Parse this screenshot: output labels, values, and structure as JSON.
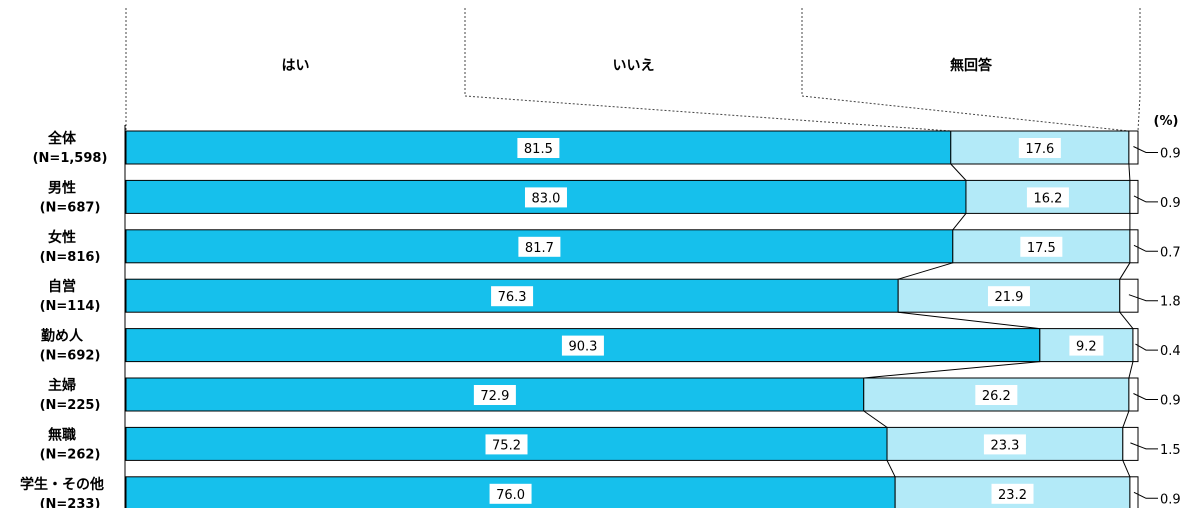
{
  "chart_data": {
    "type": "bar",
    "stacked": true,
    "percent_stacked": true,
    "unit": "(%)",
    "series": [
      {
        "name": "はい",
        "color": "#16c0ec",
        "values": [
          81.5,
          83.0,
          81.7,
          76.3,
          90.3,
          72.9,
          75.2,
          76.0
        ]
      },
      {
        "name": "いいえ",
        "color": "#b3eaf8",
        "values": [
          17.6,
          16.2,
          17.5,
          21.9,
          9.2,
          26.2,
          23.3,
          23.2
        ]
      },
      {
        "name": "無回答",
        "color": "#ffffff",
        "values": [
          0.9,
          0.9,
          0.7,
          1.8,
          0.4,
          0.9,
          1.5,
          0.9
        ]
      }
    ],
    "categories": [
      {
        "name": "全体",
        "n": "(N=1,598)"
      },
      {
        "name": "男性",
        "n": "(N=687)"
      },
      {
        "name": "女性",
        "n": "(N=816)"
      },
      {
        "name": "自営",
        "n": "(N=114)"
      },
      {
        "name": "勤め人",
        "n": "(N=692)"
      },
      {
        "name": "主婦",
        "n": "(N=225)"
      },
      {
        "name": "無職",
        "n": "(N=262)"
      },
      {
        "name": "学生・その他",
        "n": "(N=233)"
      }
    ],
    "labels": {
      "はい": [
        "81.5",
        "83.0",
        "81.7",
        "76.3",
        "90.3",
        "72.9",
        "75.2",
        "76.0"
      ],
      "いいえ": [
        "17.6",
        "16.2",
        "17.5",
        "21.9",
        "9.2",
        "26.2",
        "23.3",
        "23.2"
      ],
      "無回答": [
        "0.9",
        "0.9",
        "0.7",
        "1.8",
        "0.4",
        "0.9",
        "1.5",
        "0.9"
      ]
    }
  }
}
